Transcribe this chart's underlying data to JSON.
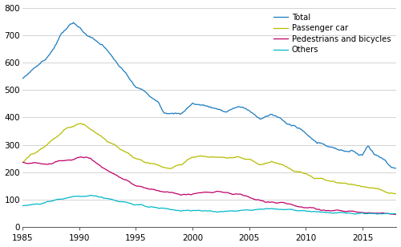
{
  "xlim": [
    1985.0,
    2018.0
  ],
  "ylim": [
    0,
    800
  ],
  "yticks": [
    0,
    100,
    200,
    300,
    400,
    500,
    600,
    700,
    800
  ],
  "xticks": [
    1985,
    1990,
    1995,
    2000,
    2005,
    2010,
    2015
  ],
  "colors": {
    "Total": "#1a7bbf",
    "Passenger car": "#b5bd00",
    "Pedestrians and bicycles": "#c0006a",
    "Others": "#00b8c8"
  },
  "background_color": "#ffffff",
  "grid_color": "#cccccc",
  "linewidth": 0.9
}
